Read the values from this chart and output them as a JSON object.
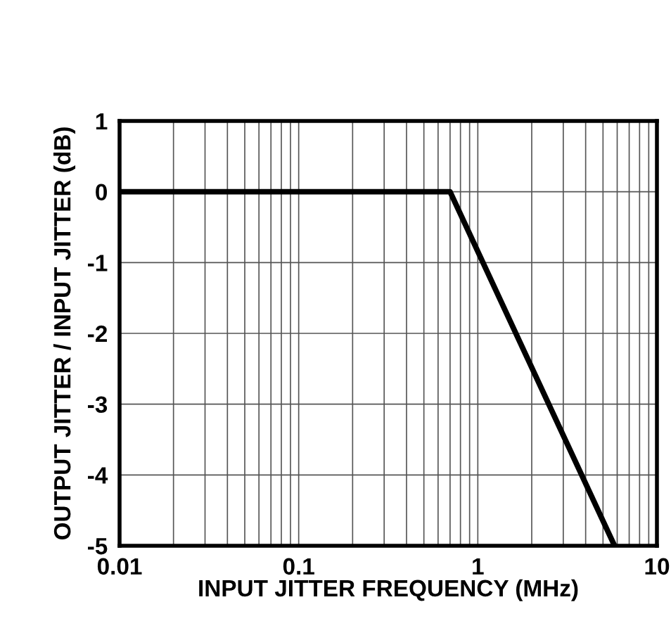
{
  "chart_data": {
    "type": "line",
    "xlabel": "INPUT JITTER FREQUENCY (MHz)",
    "ylabel": "OUTPUT JITTER / INPUT JITTER (dB)",
    "x": [
      0.01,
      0.7,
      5.8
    ],
    "series": [
      {
        "color": "#000000",
        "values": [
          0,
          0,
          -5
        ]
      }
    ],
    "log": "x",
    "xlim": [
      0.01,
      10
    ],
    "xticks": [
      0.01,
      0.1,
      1,
      10
    ],
    "ylim": [
      -5,
      1
    ],
    "yticks": [
      -5,
      -4,
      -3,
      -2,
      -1,
      0,
      1
    ],
    "grid": true,
    "marker": "none",
    "line_style": "solid"
  }
}
